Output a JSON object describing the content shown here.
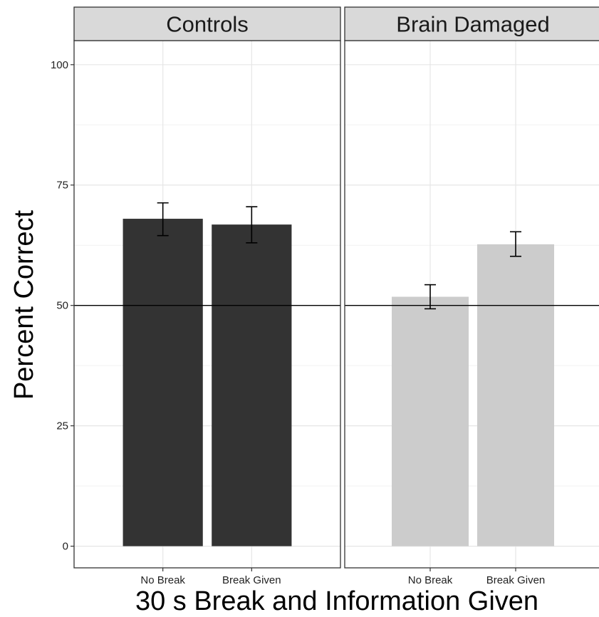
{
  "chart_data": {
    "type": "bar",
    "xlabel": "30 s Break and Information Given",
    "ylabel": "Percent Correct",
    "ylim": [
      0,
      105
    ],
    "yticks": [
      0,
      25,
      50,
      75,
      100
    ],
    "categories": [
      "No Break",
      "Break Given"
    ],
    "reference_line": 50,
    "grid": true,
    "panels": [
      {
        "name": "Controls",
        "color": "#333333",
        "values": [
          68,
          66.8
        ],
        "error_low": [
          64.5,
          63
        ],
        "error_high": [
          71.3,
          70.5
        ]
      },
      {
        "name": "Brain Damaged",
        "color": "#cccccc",
        "values": [
          51.8,
          62.7
        ],
        "error_low": [
          49.3,
          60.2
        ],
        "error_high": [
          54.3,
          65.3
        ]
      }
    ]
  }
}
